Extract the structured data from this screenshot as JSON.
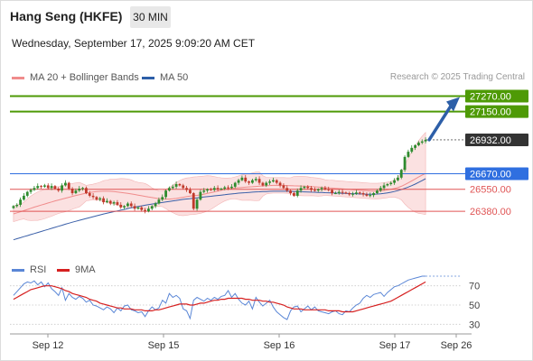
{
  "header": {
    "title": "Hang Seng (HKFE)",
    "timeframe": "30 MIN",
    "datetime": "Wednesday, September 17, 2025 9:09:20 AM CET"
  },
  "legend": {
    "ma20": "MA 20 + Bollinger Bands",
    "ma50": "MA 50",
    "source": "Research © 2025 Trading Central",
    "rsi": "RSI",
    "ma9": "9MA"
  },
  "colors": {
    "green_level": "#4e9a06",
    "blue_level": "#2f6fe0",
    "red_level": "#e05555",
    "current_price": "#333333",
    "bollinger_fill": "#fbe1e1",
    "ma50": "#3a5fa8",
    "candle_up": "#2e8b2e",
    "candle_down": "#c0392b",
    "rsi_line": "#5a86d6",
    "rsi_ma": "#d62020",
    "arrow": "#2d5fa8"
  },
  "chart_data": {
    "type": "candlestick",
    "x_tick_labels": [
      "Sep 12",
      "Sep 15",
      "Sep 16",
      "Sep 17",
      "Sep 26"
    ],
    "ylim": [
      26060,
      27350
    ],
    "price_levels": [
      {
        "value": 27270.0,
        "label": "27270.00",
        "kind": "resistance"
      },
      {
        "value": 27150.0,
        "label": "27150.00",
        "kind": "resistance"
      },
      {
        "value": 26932.0,
        "label": "26932.00",
        "kind": "last_price"
      },
      {
        "value": 26670.0,
        "label": "26670.00",
        "kind": "pivot"
      },
      {
        "value": 26550.0,
        "label": "26550.00",
        "kind": "support"
      },
      {
        "value": 26380.0,
        "label": "26380.00",
        "kind": "support"
      }
    ],
    "close_series": [
      26420,
      26430,
      26470,
      26500,
      26530,
      26545,
      26560,
      26575,
      26570,
      26580,
      26560,
      26575,
      26555,
      26540,
      26580,
      26600,
      26555,
      26520,
      26540,
      26555,
      26560,
      26520,
      26500,
      26490,
      26470,
      26480,
      26450,
      26460,
      26440,
      26450,
      26430,
      26410,
      26420,
      26440,
      26420,
      26400,
      26410,
      26390,
      26380,
      26400,
      26420,
      26440,
      26470,
      26490,
      26540,
      26560,
      26570,
      26590,
      26580,
      26560,
      26545,
      26520,
      26400,
      26470,
      26530,
      26540,
      26550,
      26545,
      26560,
      26550,
      26555,
      26565,
      26560,
      26570,
      26600,
      26620,
      26640,
      26610,
      26600,
      26620,
      26630,
      26600,
      26580,
      26600,
      26610,
      26620,
      26600,
      26580,
      26560,
      26540,
      26520,
      26500,
      26540,
      26560,
      26570,
      26560,
      26545,
      26540,
      26550,
      26560,
      26550,
      26545,
      26520,
      26520,
      26530,
      26525,
      26520,
      26510,
      26515,
      26525,
      26520,
      26510,
      26500,
      26505,
      26520,
      26540,
      26560,
      26580,
      26590,
      26600,
      26620,
      26640,
      26700,
      26800,
      26840,
      26870,
      26890,
      26910,
      26920,
      26932
    ],
    "ma20": [
      26360,
      26368,
      26376,
      26385,
      26394,
      26403,
      26412,
      26420,
      26428,
      26436,
      26444,
      26452,
      26460,
      26467,
      26474,
      26481,
      26488,
      26495,
      26502,
      26508,
      26514,
      26520,
      26525,
      26529,
      26532,
      26534,
      26535,
      26535,
      26534,
      26532,
      26529,
      26526,
      26522,
      26518,
      26514,
      26510,
      26505,
      26500,
      26495,
      26490,
      26486,
      26482,
      26478,
      26476,
      26474,
      26474,
      26476,
      26479,
      26483,
      26488,
      26493,
      26497,
      26500,
      26503,
      26507,
      26512,
      26518,
      26524,
      26530,
      26536,
      26542,
      26548,
      26553,
      26557,
      26560,
      26562,
      26564,
      26566,
      26568,
      26570,
      26572,
      26574,
      26576,
      26578,
      26579,
      26580,
      26580,
      26580,
      26580,
      26579,
      26578,
      26577,
      26576,
      26575,
      26574,
      26573,
      26571,
      26569,
      26567,
      26565,
      26563,
      26561,
      26559,
      26557,
      26555,
      26553,
      26551,
      26549,
      26547,
      26545,
      26543,
      26541,
      26539,
      26537,
      26536,
      26536,
      26538,
      26541,
      26545,
      26550,
      26556,
      26563,
      26573,
      26586,
      26600,
      26615,
      26630,
      26645,
      26660,
      26672
    ],
    "ma50": [
      26160,
      26168,
      26176,
      26184,
      26192,
      26200,
      26208,
      26216,
      26224,
      26232,
      26240,
      26248,
      26256,
      26264,
      26272,
      26280,
      26288,
      26296,
      26303,
      26310,
      26317,
      26324,
      26331,
      26338,
      26345,
      26352,
      26359,
      26365,
      26371,
      26377,
      26383,
      26389,
      26395,
      26401,
      26407,
      26412,
      26417,
      26422,
      26427,
      26432,
      26436,
      26440,
      26444,
      26448,
      26452,
      26456,
      26460,
      26464,
      26468,
      26472,
      26475,
      26478,
      26481,
      26484,
      26487,
      26490,
      26493,
      26496,
      26499,
      26502,
      26505,
      26508,
      26511,
      26514,
      26517,
      26520,
      26522,
      26524,
      26526,
      26528,
      26530,
      26531,
      26532,
      26533,
      26534,
      26535,
      26535,
      26535,
      26535,
      26535,
      26534,
      26533,
      26532,
      26531,
      26530,
      26529,
      26528,
      26527,
      26526,
      26525,
      26524,
      26523,
      26522,
      26521,
      26520,
      26519,
      26518,
      26517,
      26516,
      26515,
      26514,
      26513,
      26512,
      26512,
      26512,
      26513,
      26515,
      26518,
      26522,
      26527,
      26533,
      26540,
      26548,
      26557,
      26567,
      26578,
      26590,
      26603,
      26617,
      26632
    ],
    "rsi": {
      "ylim": [
        20,
        80
      ],
      "tick_labels": [
        "70",
        "50",
        "30"
      ],
      "rsi_values": [
        60,
        64,
        68,
        72,
        74,
        73,
        75,
        71,
        74,
        69,
        73,
        67,
        64,
        60,
        68,
        55,
        62,
        58,
        56,
        59,
        57,
        53,
        55,
        50,
        49,
        47,
        45,
        48,
        46,
        42,
        47,
        44,
        49,
        50,
        45,
        44,
        42,
        43,
        38,
        44,
        48,
        45,
        47,
        55,
        52,
        62,
        58,
        60,
        57,
        46,
        44,
        36,
        55,
        58,
        56,
        54,
        57,
        55,
        58,
        56,
        59,
        60,
        65,
        58,
        62,
        56,
        52,
        50,
        54,
        46,
        58,
        53,
        49,
        52,
        55,
        48,
        43,
        40,
        37,
        35,
        44,
        48,
        49,
        43,
        46,
        49,
        45,
        48,
        44,
        43,
        42,
        41,
        43,
        44,
        41,
        40,
        44,
        43,
        47,
        50,
        52,
        57,
        60,
        58,
        61,
        62,
        63,
        59,
        63,
        66,
        69,
        70,
        72,
        74,
        76,
        77,
        78,
        79,
        80,
        80
      ],
      "ma9_values": [
        56,
        58,
        60,
        62,
        64,
        66,
        67,
        68,
        69,
        70,
        70,
        70,
        69,
        68,
        67,
        65,
        64,
        62,
        61,
        60,
        59,
        58,
        56,
        55,
        54,
        52,
        51,
        50,
        49,
        48,
        47,
        47,
        46,
        46,
        46,
        45,
        45,
        45,
        44,
        44,
        44,
        45,
        45,
        46,
        47,
        48,
        49,
        50,
        51,
        51,
        51,
        50,
        50,
        51,
        52,
        52,
        53,
        54,
        55,
        55,
        56,
        56,
        57,
        57,
        57,
        57,
        57,
        56,
        56,
        55,
        55,
        55,
        54,
        54,
        53,
        53,
        52,
        51,
        50,
        48,
        47,
        46,
        46,
        46,
        45,
        45,
        45,
        45,
        45,
        45,
        45,
        44,
        44,
        44,
        44,
        43,
        43,
        43,
        43,
        44,
        45,
        46,
        47,
        48,
        49,
        50,
        51,
        52,
        53,
        54,
        56,
        58,
        60,
        62,
        64,
        66,
        68,
        70,
        72,
        74
      ]
    }
  }
}
